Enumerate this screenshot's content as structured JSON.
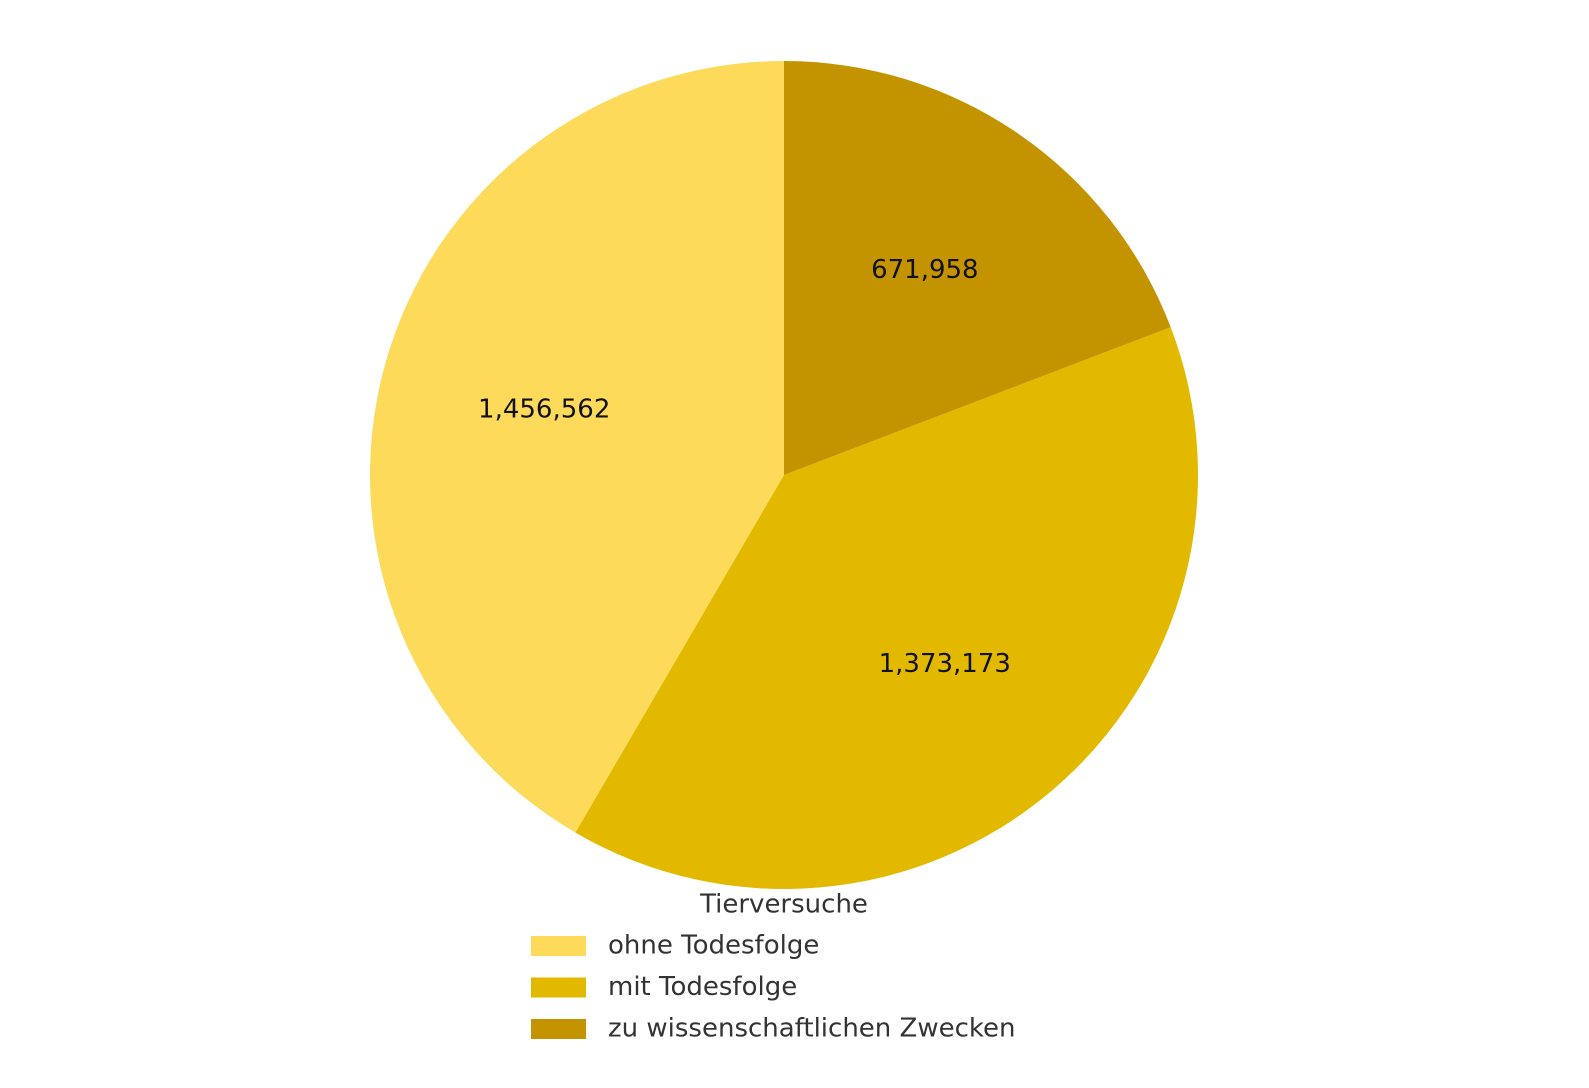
{
  "chart_data": {
    "type": "pie",
    "categories": [
      "ohne Todesfolge",
      "mit Todesfolge",
      "zu wissenschaftlichen Zwecken"
    ],
    "values": [
      1456562,
      1373173,
      671958
    ],
    "value_labels": [
      "1,456,562",
      "1,373,173",
      "671,958"
    ],
    "colors": [
      "#fdda5a",
      "#e3b900",
      "#c49400"
    ],
    "legend_title": "Tierversuche",
    "start_angle": 90,
    "counterclockwise": true
  }
}
